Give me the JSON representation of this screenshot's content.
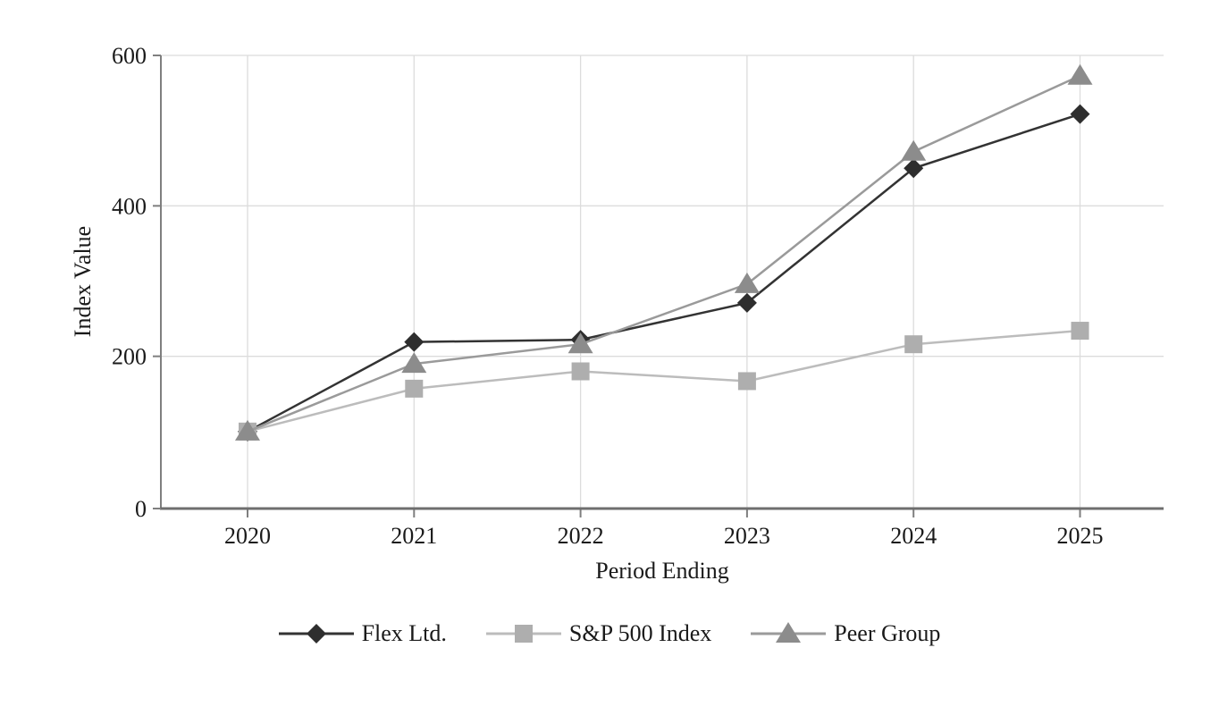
{
  "page": {
    "background": "#ffffff"
  },
  "chart_data": {
    "type": "line",
    "title": "",
    "xlabel": "Period Ending",
    "ylabel": "Index Value",
    "categories": [
      "2020",
      "2021",
      "2022",
      "2023",
      "2024",
      "2025"
    ],
    "series": [
      {
        "name": "Flex Ltd.",
        "marker": "diamond",
        "line_color": "#333333",
        "marker_color": "#2e2e2e",
        "values": [
          100,
          219,
          222,
          271,
          450,
          522
        ]
      },
      {
        "name": "S&P 500 Index",
        "marker": "square",
        "line_color": "#bcbcbc",
        "marker_color": "#aeaeae",
        "values": [
          100,
          157,
          180,
          167,
          216,
          234
        ]
      },
      {
        "name": "Peer Group",
        "marker": "triangle",
        "line_color": "#9a9a9a",
        "marker_color": "#8c8c8c",
        "values": [
          100,
          190,
          216,
          296,
          472,
          573
        ]
      }
    ],
    "ylim": [
      0,
      600
    ],
    "y_ticks": [
      0,
      200,
      400,
      600
    ],
    "grid": "both",
    "legend_position": "bottom-center",
    "colors": {
      "axis": "#7f7f7f",
      "baseline_axis": "#6e6e6e",
      "grid": "#dcdcdc",
      "text": "#1a1a1a"
    }
  }
}
